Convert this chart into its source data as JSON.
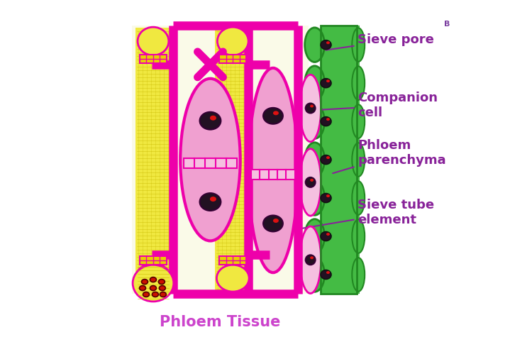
{
  "title": "Phloem Tissue",
  "title_color": "#CC44CC",
  "title_fontsize": 15,
  "background_color": "#ffffff",
  "magenta": "#EE00AA",
  "pink_fill": "#F0A0D0",
  "light_pink": "#F5C0E0",
  "cream_fill": "#FAFAE8",
  "yellow_fill": "#F0E840",
  "yellow_texture": "#E8E020",
  "green_fill": "#44BB44",
  "dark_green": "#228822",
  "dark_nucleus": "#221122",
  "red_dot": "#DD1111",
  "label_color": "#882299",
  "label_fontsize": 13,
  "labels": {
    "sieve_pore": "Sieve pore",
    "companion_cell": "Companion\ncell",
    "phloem_parenchyma": "Phloem\nparenchyma",
    "sieve_tube": "Sieve tube\nelement"
  }
}
